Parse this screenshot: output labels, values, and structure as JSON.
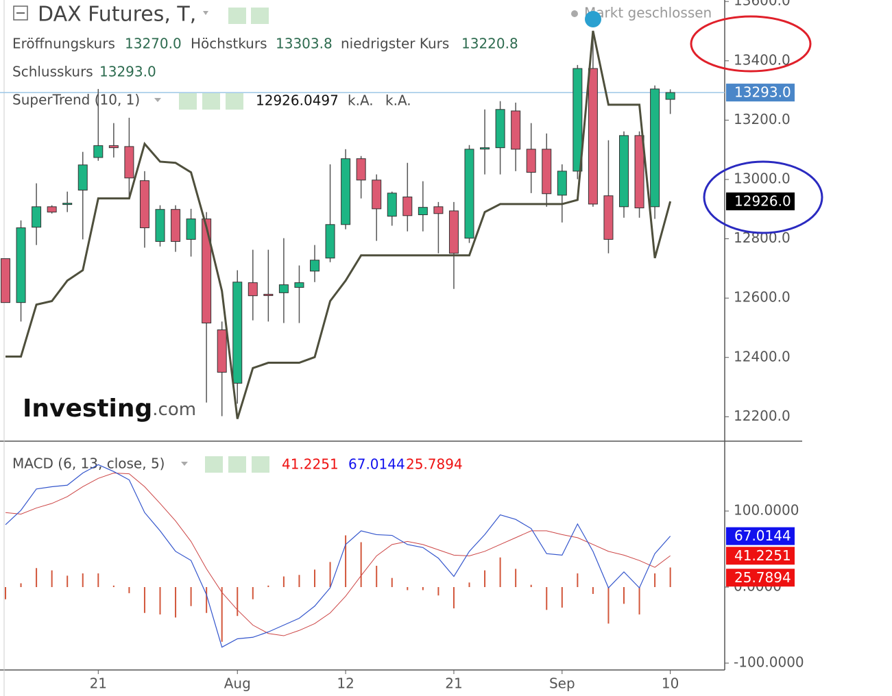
{
  "header": {
    "title": "DAX Futures, T,",
    "status": "Markt geschlossen",
    "ohlc": [
      {
        "label": "Eröffnungskurs",
        "value": "13270.0"
      },
      {
        "label": "Höchstkurs",
        "value": "13303.8"
      },
      {
        "label": "niedrigster Kurs",
        "value": "13220.8"
      },
      {
        "label": "Schlusskurs",
        "value": "13293.0"
      }
    ]
  },
  "watermark": [
    "Investing",
    ".com"
  ],
  "chart_data": [
    {
      "type": "candlestick",
      "up_color": "#1db584",
      "down_color": "#dc5a72",
      "open": [
        12733,
        12585,
        12839,
        12908,
        12918,
        12964,
        13074,
        13114,
        13111,
        12996,
        12791,
        12899,
        12798,
        12867,
        12493,
        12313,
        12652,
        12613,
        12618,
        12636,
        12691,
        12735,
        12848,
        13070,
        12998,
        12876,
        12941,
        12881,
        12908,
        12894,
        12802,
        13105,
        13107,
        13231,
        13102,
        13102,
        12947,
        13028,
        13374,
        12945,
        12908,
        13148,
        12908,
        13270.0
      ],
      "high": [
        12733,
        12862,
        12987,
        12913,
        12959,
        13093,
        13305,
        13190,
        13208,
        13028,
        12913,
        12913,
        12901,
        12890,
        12521,
        12694,
        12763,
        12763,
        12802,
        12710,
        12779,
        13051,
        13102,
        13079,
        13017,
        12959,
        13056,
        12994,
        12924,
        12924,
        13116,
        13236,
        13264,
        13259,
        13190,
        13155,
        13051,
        13386,
        13501,
        13132,
        13162,
        13162,
        13317,
        13303.8
      ],
      "low": [
        12585,
        12521,
        12779,
        12885,
        12890,
        12798,
        13063,
        13074,
        12936,
        12770,
        12774,
        12756,
        12740,
        12248,
        12202,
        12244,
        12525,
        12521,
        12516,
        12516,
        12654,
        12721,
        12832,
        12936,
        12793,
        12844,
        12825,
        12825,
        12751,
        12631,
        12786,
        13017,
        13017,
        13028,
        12954,
        12908,
        12855,
        13001,
        12908,
        12751,
        12871,
        12871,
        12867,
        13220.8
      ],
      "close": [
        12585,
        12837,
        12908,
        12890,
        12920,
        13049,
        13114,
        13107,
        13005,
        12837,
        12899,
        12791,
        12867,
        12516,
        12350,
        12654,
        12608,
        12610,
        12645,
        12652,
        12728,
        12848,
        13070,
        12998,
        12901,
        12954,
        12878,
        12906,
        12885,
        12751,
        13102,
        13107,
        13236,
        13102,
        13024,
        12952,
        13028,
        13374,
        12917,
        12798,
        13148,
        12904,
        13305,
        13293.0
      ],
      "ylim": [
        12120,
        13605
      ],
      "yticks": [
        {
          "value": 12200,
          "label": "12200.0"
        },
        {
          "value": 12400,
          "label": "12400.0"
        },
        {
          "value": 12600,
          "label": "12600.0"
        },
        {
          "value": 12800,
          "label": "12800.0"
        },
        {
          "value": 13000,
          "label": "13000.0"
        },
        {
          "value": 13200,
          "label": "13200.0"
        },
        {
          "value": 13400,
          "label": "13400.0"
        },
        {
          "value": 13600,
          "label": "13600.0"
        }
      ],
      "overlay": {
        "name": "SuperTrend (10, 1)",
        "color": "#4e4f3c",
        "values": [
          12403,
          12403,
          12578,
          12590,
          12659,
          12694,
          12936,
          12936,
          12936,
          13120,
          13060,
          13056,
          13024,
          12839,
          12624,
          12193,
          12364,
          12382,
          12382,
          12382,
          12401,
          12590,
          12659,
          12744,
          12744,
          12744,
          12744,
          12744,
          12744,
          12744,
          12744,
          12890,
          12917,
          12917,
          12917,
          12917,
          12917,
          12931,
          13501,
          13252,
          13252,
          13252,
          12735,
          12926.0497
        ],
        "legend_values": [
          "12926.0497",
          "k.A.",
          "k.A."
        ],
        "axis_label": "12926.0"
      }
    },
    {
      "type": "macd",
      "name": "MACD (6, 13, close, 5)",
      "categories": [
        null,
        null,
        null,
        null,
        null,
        null,
        "21",
        null,
        null,
        null,
        null,
        null,
        null,
        null,
        null,
        "Aug",
        null,
        null,
        null,
        null,
        null,
        null,
        "12",
        null,
        null,
        null,
        null,
        null,
        null,
        "21",
        null,
        null,
        null,
        null,
        null,
        null,
        "Sep",
        null,
        null,
        null,
        null,
        null,
        null,
        "10"
      ],
      "macd": {
        "color": "#3355cc",
        "values": [
          82,
          101,
          129,
          132,
          134,
          150,
          161,
          152,
          141,
          98,
          74,
          47,
          35,
          -10,
          -79,
          -68,
          -66,
          -59,
          -50,
          -41,
          -25,
          -1,
          56,
          74,
          69,
          68,
          56,
          52,
          38,
          14,
          47,
          69,
          95,
          89,
          77,
          44,
          42,
          83,
          47,
          -1,
          20,
          -1,
          44,
          67.0144
        ]
      },
      "signal": {
        "color": "#cc4444",
        "values": [
          98,
          96,
          104,
          110,
          119,
          132,
          143,
          150,
          149,
          132,
          110,
          87,
          60,
          24,
          -7,
          -30,
          -50,
          -61,
          -64,
          -57,
          -48,
          -34,
          -12,
          15,
          41,
          56,
          60,
          56,
          49,
          42,
          41,
          47,
          56,
          65,
          74,
          74,
          69,
          65,
          56,
          47,
          42,
          35,
          26,
          41.2251
        ]
      },
      "histogram": {
        "color": "#d2563a",
        "values": [
          -16,
          5,
          25,
          22,
          15,
          18,
          18,
          2,
          -8,
          -34,
          -36,
          -40,
          -25,
          -34,
          -72,
          -38,
          -16,
          2,
          14,
          16,
          23,
          33,
          68,
          59,
          28,
          12,
          -4,
          -4,
          -11,
          -28,
          6,
          22,
          39,
          24,
          3,
          -30,
          -27,
          18,
          -9,
          -48,
          -22,
          -36,
          18,
          25.7894
        ]
      },
      "legend_values": [
        {
          "text": "41.2251",
          "color": "#ee1111"
        },
        {
          "text": "67.0144",
          "color": "#1111ee"
        },
        {
          "text": "25.7894",
          "color": "#ee1111"
        }
      ],
      "ylim": [
        -109,
        191
      ],
      "yticks": [
        {
          "value": -100,
          "label": "-100.0000"
        },
        {
          "value": 0,
          "label": "0.0000"
        },
        {
          "value": 100,
          "label": "100.0000"
        }
      ]
    }
  ]
}
